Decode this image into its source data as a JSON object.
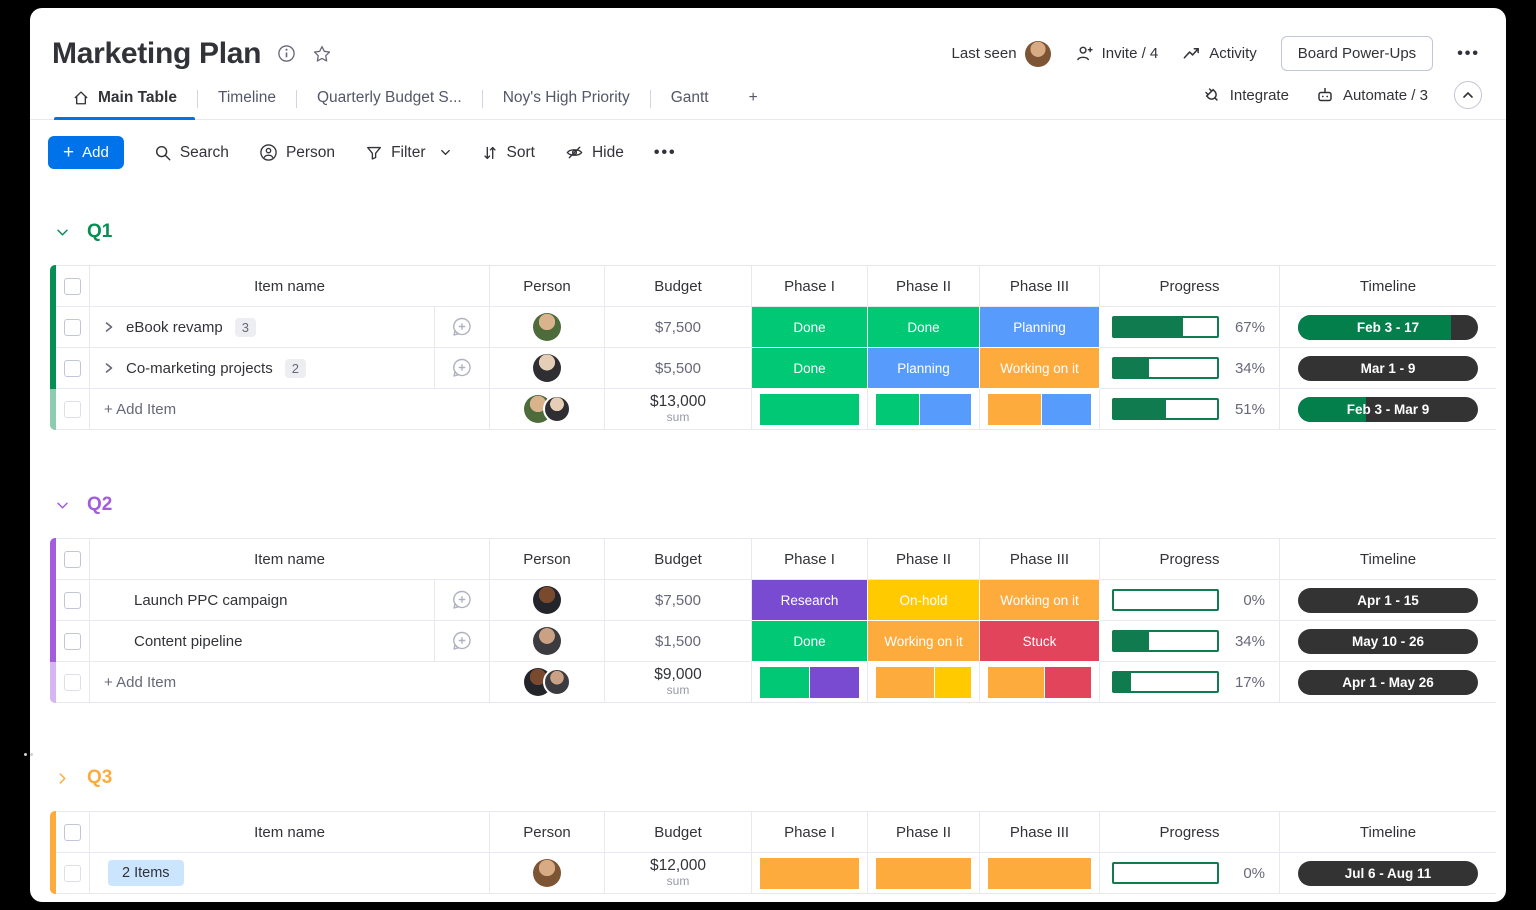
{
  "colors": {
    "accent": "#0073ea",
    "done": "#00c875",
    "planning": "#579bfc",
    "working": "#fdab3d",
    "stuck": "#e2445c",
    "research": "#784bd1",
    "onhold": "#ffcb00",
    "group_q1": "#058f54",
    "group_q2": "#a25ddc",
    "group_q3": "#fdab3d",
    "pill_dark": "#333333",
    "timeline_green": "#037f4c",
    "progress_green": "#0f7b4f",
    "items_badge_bg": "#cce5ff"
  },
  "header": {
    "title": "Marketing Plan",
    "last_seen": "Last seen",
    "invite": "Invite / 4",
    "activity": "Activity",
    "power_ups": "Board Power-Ups",
    "integrate": "Integrate",
    "automate": "Automate / 3"
  },
  "tabs": {
    "main_table": "Main Table",
    "timeline": "Timeline",
    "quarterly": "Quarterly Budget S...",
    "noys": "Noy's High Priority",
    "gantt": "Gantt",
    "add": "+"
  },
  "toolbar": {
    "add": "Add",
    "search": "Search",
    "person": "Person",
    "filter": "Filter",
    "sort": "Sort",
    "hide": "Hide"
  },
  "columns": {
    "item": "Item name",
    "person": "Person",
    "budget": "Budget",
    "phase1": "Phase I",
    "phase2": "Phase II",
    "phase3": "Phase III",
    "progress": "Progress",
    "timeline": "Timeline"
  },
  "groups": [
    {
      "name": "Q1",
      "rows": [
        {
          "name": "eBook revamp",
          "badge": "3",
          "budget": "$7,500",
          "phase1": {
            "label": "Done",
            "color": "done"
          },
          "phase2": {
            "label": "Done",
            "color": "done"
          },
          "phase3": {
            "label": "Planning",
            "color": "planning"
          },
          "progress_label": "67%",
          "progress_pct": 67,
          "timeline": {
            "label": "Feb 3 - 17",
            "fill_pct": 85
          }
        },
        {
          "name": "Co-marketing projects",
          "badge": "2",
          "budget": "$5,500",
          "phase1": {
            "label": "Done",
            "color": "done"
          },
          "phase2": {
            "label": "Planning",
            "color": "planning"
          },
          "phase3": {
            "label": "Working on it",
            "color": "working"
          },
          "progress_label": "34%",
          "progress_pct": 34,
          "timeline": {
            "label": "Mar 1 - 9",
            "fill_pct": 0
          }
        }
      ],
      "footer": {
        "add_label": "+ Add Item",
        "sum_value": "$13,000",
        "sum_caption": "sum",
        "phase1_segments": [
          {
            "color": "done",
            "pct": 100
          }
        ],
        "phase2_segments": [
          {
            "color": "done",
            "pct": 46
          },
          {
            "color": "planning",
            "pct": 54
          }
        ],
        "phase3_segments": [
          {
            "color": "working",
            "pct": 52
          },
          {
            "color": "planning",
            "pct": 48
          }
        ],
        "progress_label": "51%",
        "progress_pct": 51,
        "timeline": {
          "label": "Feb 3 - Mar 9",
          "fill_pct": 38
        }
      }
    },
    {
      "name": "Q2",
      "rows": [
        {
          "name": "Launch PPC campaign",
          "budget": "$7,500",
          "phase1": {
            "label": "Research",
            "color": "research"
          },
          "phase2": {
            "label": "On-hold",
            "color": "onhold"
          },
          "phase3": {
            "label": "Working on it",
            "color": "working"
          },
          "progress_label": "0%",
          "progress_pct": 0,
          "timeline": {
            "label": "Apr 1 - 15",
            "fill_pct": 0
          }
        },
        {
          "name": "Content pipeline",
          "budget": "$1,500",
          "phase1": {
            "label": "Done",
            "color": "done"
          },
          "phase2": {
            "label": "Working on it",
            "color": "working"
          },
          "phase3": {
            "label": "Stuck",
            "color": "stuck"
          },
          "progress_label": "34%",
          "progress_pct": 34,
          "timeline": {
            "label": "May 10 - 26",
            "fill_pct": 0
          }
        }
      ],
      "footer": {
        "add_label": "+ Add Item",
        "sum_value": "$9,000",
        "sum_caption": "sum",
        "phase1_segments": [
          {
            "color": "done",
            "pct": 50
          },
          {
            "color": "research",
            "pct": 50
          }
        ],
        "phase2_segments": [
          {
            "color": "working",
            "pct": 62
          },
          {
            "color": "onhold",
            "pct": 38
          }
        ],
        "phase3_segments": [
          {
            "color": "working",
            "pct": 55
          },
          {
            "color": "stuck",
            "pct": 45
          }
        ],
        "progress_label": "17%",
        "progress_pct": 17,
        "timeline": {
          "label": "Apr 1 - May 26",
          "fill_pct": 0
        }
      }
    },
    {
      "name": "Q3",
      "items_badge": "2 Items",
      "summary": {
        "sum_value": "$12,000",
        "sum_caption": "sum",
        "phase1_segments": [
          {
            "color": "working",
            "pct": 100
          }
        ],
        "phase2_segments": [
          {
            "color": "working",
            "pct": 100
          }
        ],
        "phase3_segments": [
          {
            "color": "working",
            "pct": 100
          }
        ],
        "progress_label": "0%",
        "progress_pct": 0,
        "timeline": {
          "label": "Jul 6 - Aug 11",
          "fill_pct": 0
        }
      }
    }
  ]
}
